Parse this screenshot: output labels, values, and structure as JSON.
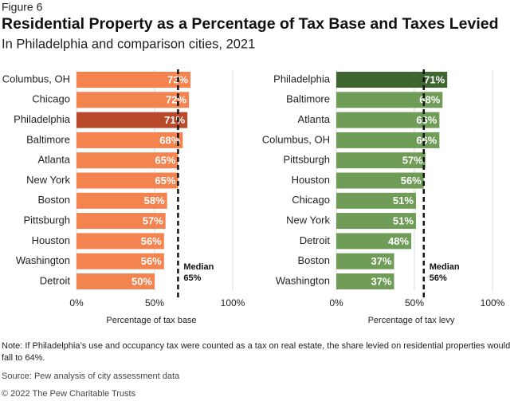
{
  "header": {
    "figure": "Figure 6",
    "title": "Residential Property as a Percentage of Tax Base and Taxes Levied",
    "subtitle": "In Philadelphia and comparison cities, 2021"
  },
  "chart_data": [
    {
      "type": "bar",
      "orientation": "horizontal",
      "xlabel": "Percentage of tax base",
      "categories": [
        "Columbus, OH",
        "Chicago",
        "Philadelphia",
        "Baltimore",
        "Atlanta",
        "New York",
        "Boston",
        "Pittsburgh",
        "Houston",
        "Washington",
        "Detroit"
      ],
      "values": [
        73,
        72,
        71,
        68,
        65,
        65,
        58,
        57,
        56,
        56,
        50
      ],
      "value_labels": [
        "73%",
        "72%",
        "71%",
        "68%",
        "65%",
        "65%",
        "58%",
        "57%",
        "56%",
        "56%",
        "50%"
      ],
      "colors": [
        "#f3834f",
        "#f3834f",
        "#b84a2b",
        "#f3834f",
        "#f3834f",
        "#f3834f",
        "#f3834f",
        "#f3834f",
        "#f3834f",
        "#f3834f",
        "#f3834f"
      ],
      "xlim": [
        0,
        100
      ],
      "xticks": [
        {
          "value": 0,
          "label": "0%"
        },
        {
          "value": 50,
          "label": "50%"
        },
        {
          "value": 100,
          "label": "100%"
        }
      ],
      "median": {
        "value": 65,
        "label": "Median",
        "value_label": "65%"
      }
    },
    {
      "type": "bar",
      "orientation": "horizontal",
      "xlabel": "Percentage of tax levy",
      "categories": [
        "Philadelphia",
        "Baltimore",
        "Atlanta",
        "Columbus, OH",
        "Pittsburgh",
        "Houston",
        "Chicago",
        "New York",
        "Detroit",
        "Boston",
        "Washington"
      ],
      "values": [
        71,
        68,
        66,
        66,
        57,
        56,
        51,
        51,
        48,
        37,
        37
      ],
      "value_labels": [
        "71%",
        "68%",
        "66%",
        "66%",
        "57%",
        "56%",
        "51%",
        "51%",
        "48%",
        "37%",
        "37%"
      ],
      "colors": [
        "#3f6531",
        "#6f9c57",
        "#6f9c57",
        "#6f9c57",
        "#6f9c57",
        "#6f9c57",
        "#6f9c57",
        "#6f9c57",
        "#6f9c57",
        "#6f9c57",
        "#6f9c57"
      ],
      "xlim": [
        0,
        100
      ],
      "xticks": [
        {
          "value": 0,
          "label": "0%"
        },
        {
          "value": 50,
          "label": "50%"
        },
        {
          "value": 100,
          "label": "100%"
        }
      ],
      "median": {
        "value": 56,
        "label": "Median",
        "value_label": "56%"
      }
    }
  ],
  "footer": {
    "note": "Note: If Philadelphia’s use and occupancy tax were counted as a tax on real estate, the share levied on residential properties would fall to 64%.",
    "source": "Source: Pew analysis of city assessment data",
    "copyright": "© 2022 The Pew Charitable Trusts"
  }
}
